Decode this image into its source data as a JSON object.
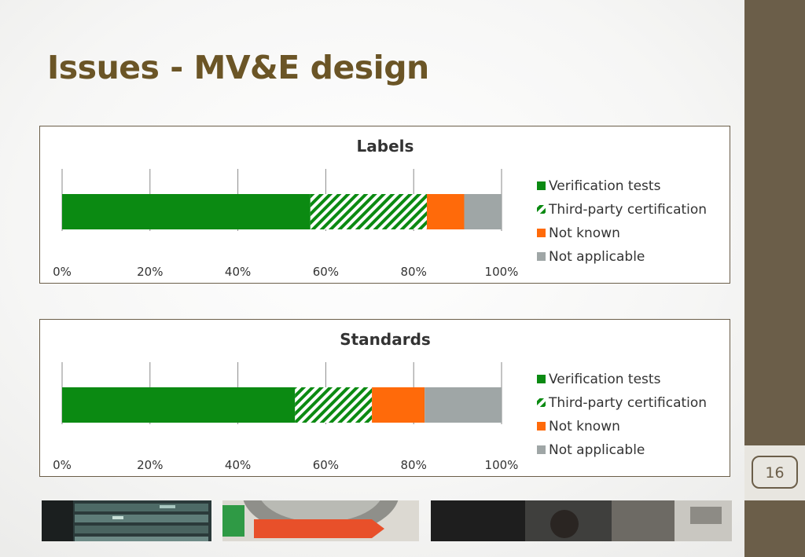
{
  "slide": {
    "title": "Issues - MV&E design",
    "page_number": "16"
  },
  "colors": {
    "accent": "#6b5e49",
    "title": "#6b5526",
    "verification": "#0b8a12",
    "third_party": "#0b8a12",
    "not_known": "#ff6a0a",
    "not_applicable": "#9fa6a6"
  },
  "chart_data": [
    {
      "type": "bar",
      "orientation": "horizontal",
      "stacked": "100%",
      "title": "Labels",
      "xlim": [
        0,
        100
      ],
      "ticks": [
        "0%",
        "20%",
        "40%",
        "60%",
        "80%",
        "100%"
      ],
      "grid": true,
      "legend_position": "right",
      "series": [
        {
          "name": "Verification tests",
          "values": [
            56.5
          ],
          "fill": "solid"
        },
        {
          "name": "Third-party certification",
          "values": [
            26.5
          ],
          "fill": "hatched"
        },
        {
          "name": "Not known",
          "values": [
            8.5
          ],
          "fill": "solid"
        },
        {
          "name": "Not applicable",
          "values": [
            8.5
          ],
          "fill": "solid"
        }
      ]
    },
    {
      "type": "bar",
      "orientation": "horizontal",
      "stacked": "100%",
      "title": "Standards",
      "xlim": [
        0,
        100
      ],
      "ticks": [
        "0%",
        "20%",
        "40%",
        "60%",
        "80%",
        "100%"
      ],
      "grid": true,
      "legend_position": "right",
      "series": [
        {
          "name": "Verification tests",
          "values": [
            53
          ],
          "fill": "solid"
        },
        {
          "name": "Third-party certification",
          "values": [
            17.5
          ],
          "fill": "hatched"
        },
        {
          "name": "Not known",
          "values": [
            12
          ],
          "fill": "solid"
        },
        {
          "name": "Not applicable",
          "values": [
            17.5
          ],
          "fill": "solid"
        }
      ]
    }
  ],
  "photos": [
    {
      "name": "server-rack-photo"
    },
    {
      "name": "washing-machine-photo"
    },
    {
      "name": "store-shoppers-photo"
    }
  ]
}
